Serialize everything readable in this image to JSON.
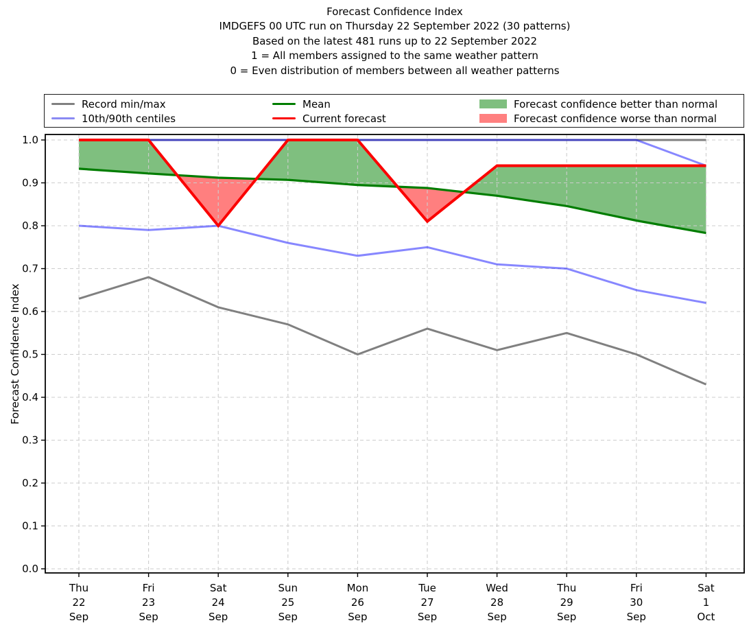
{
  "title_lines": [
    "Forecast Confidence Index",
    "IMDGEFS 00 UTC run on Thursday 22 September 2022 (30 patterns)",
    "Based on the latest 481 runs up to 22 September 2022",
    "1 = All members assigned to the same weather pattern",
    "0 = Even distribution of members between all weather patterns"
  ],
  "legend": {
    "entries": [
      {
        "label": "Record min/max",
        "swatch": "line",
        "color": "#808080"
      },
      {
        "label": "10th/90th centiles",
        "swatch": "line",
        "color": "#8a8af3"
      },
      {
        "label": "Mean",
        "swatch": "line",
        "color": "#007d00"
      },
      {
        "label": "Current forecast",
        "swatch": "line",
        "color": "#fb0000"
      },
      {
        "label": "Forecast confidence better than normal",
        "swatch": "patch",
        "color": "#7fbf7f"
      },
      {
        "label": "Forecast confidence worse than normal",
        "swatch": "patch",
        "color": "#ff8080"
      }
    ]
  },
  "chart_data": {
    "type": "line",
    "title": "Forecast Confidence Index",
    "xlabel": "",
    "ylabel": "Forecast Confidence Index",
    "ylim": [
      0.0,
      1.0
    ],
    "yticks": [
      0.0,
      0.1,
      0.2,
      0.3,
      0.4,
      0.5,
      0.6,
      0.7,
      0.8,
      0.9,
      1.0
    ],
    "grid": true,
    "legend_position": "top",
    "categories": [
      {
        "day": "Thu",
        "date": "22",
        "month": "Sep"
      },
      {
        "day": "Fri",
        "date": "23",
        "month": "Sep"
      },
      {
        "day": "Sat",
        "date": "24",
        "month": "Sep"
      },
      {
        "day": "Sun",
        "date": "25",
        "month": "Sep"
      },
      {
        "day": "Mon",
        "date": "26",
        "month": "Sep"
      },
      {
        "day": "Tue",
        "date": "27",
        "month": "Sep"
      },
      {
        "day": "Wed",
        "date": "28",
        "month": "Sep"
      },
      {
        "day": "Thu",
        "date": "29",
        "month": "Sep"
      },
      {
        "day": "Fri",
        "date": "30",
        "month": "Sep"
      },
      {
        "day": "Sat",
        "date": "1",
        "month": "Oct"
      }
    ],
    "series": [
      {
        "name": "Record max",
        "color": "#808080",
        "opacity": 1,
        "width": 3,
        "values": [
          1.0,
          1.0,
          1.0,
          1.0,
          1.0,
          1.0,
          1.0,
          1.0,
          1.0,
          1.0
        ]
      },
      {
        "name": "Record min",
        "color": "#808080",
        "opacity": 1,
        "width": 3,
        "values": [
          0.63,
          0.68,
          0.61,
          0.57,
          0.5,
          0.56,
          0.51,
          0.55,
          0.5,
          0.43
        ]
      },
      {
        "name": "90th centile",
        "color": "#0000ff",
        "opacity": 0.47,
        "width": 3,
        "values": [
          1.0,
          1.0,
          1.0,
          1.0,
          1.0,
          1.0,
          1.0,
          1.0,
          1.0,
          0.94
        ]
      },
      {
        "name": "10th centile",
        "color": "#0000ff",
        "opacity": 0.47,
        "width": 3,
        "values": [
          0.8,
          0.79,
          0.8,
          0.76,
          0.73,
          0.75,
          0.71,
          0.7,
          0.65,
          0.62
        ]
      },
      {
        "name": "Mean",
        "color": "#007d00",
        "opacity": 1,
        "width": 3.2,
        "values": [
          0.933,
          0.922,
          0.912,
          0.907,
          0.895,
          0.888,
          0.87,
          0.846,
          0.812,
          0.783
        ]
      },
      {
        "name": "Current forecast",
        "color": "#fb0000",
        "opacity": 1,
        "width": 4,
        "values": [
          1.0,
          1.0,
          0.8,
          1.0,
          1.0,
          0.81,
          0.94,
          0.94,
          0.94,
          0.94
        ]
      }
    ],
    "fills": {
      "between": [
        "Current forecast",
        "Mean"
      ],
      "above_color": "#008000",
      "below_color": "#ff0000",
      "opacity": 0.5,
      "above_meaning": "Forecast confidence better than normal",
      "below_meaning": "Forecast confidence worse than normal"
    }
  }
}
